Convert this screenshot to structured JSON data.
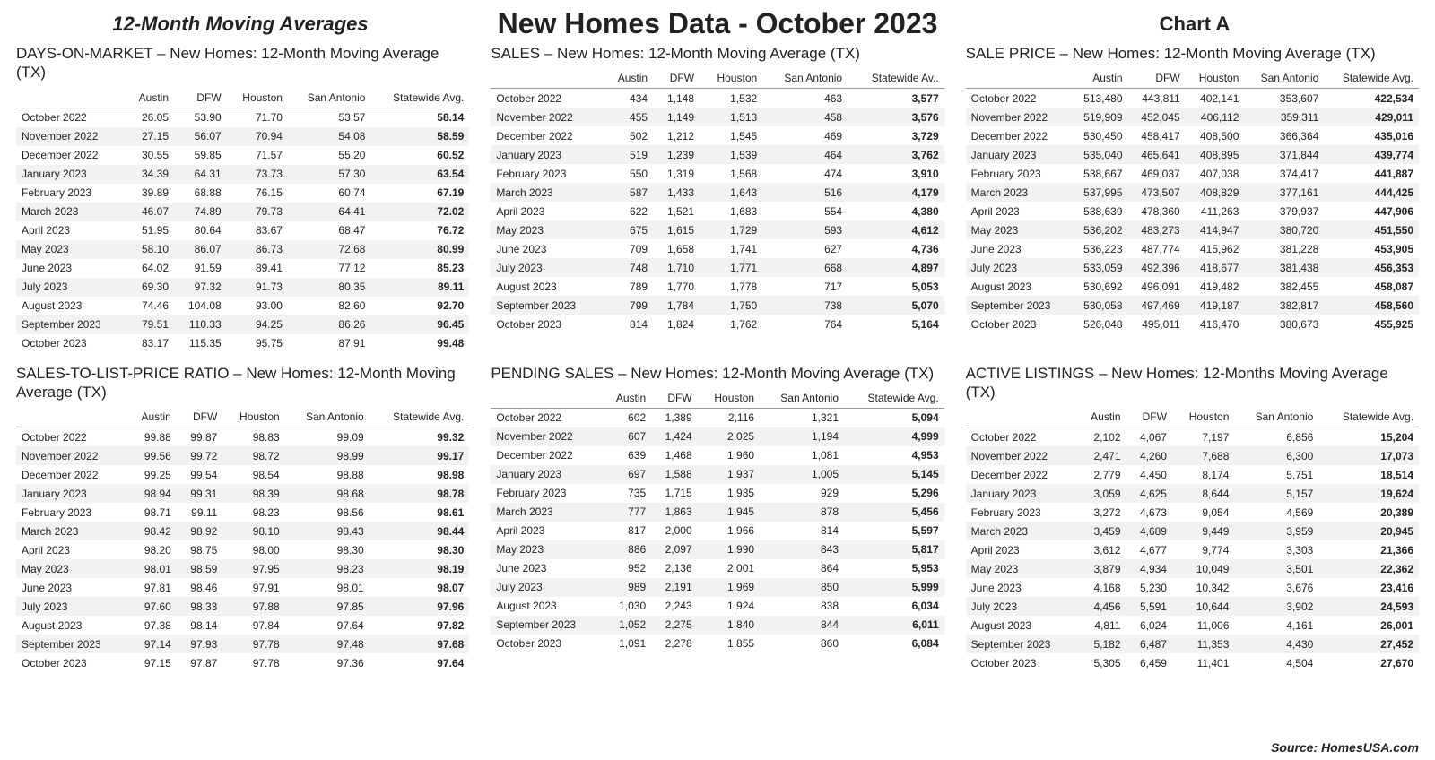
{
  "header": {
    "left": "12-Month Moving Averages",
    "center": "New Homes Data - October 2023",
    "right": "Chart A"
  },
  "colors": {
    "bg": "#ffffff",
    "text": "#222222",
    "stripe": "#f2f2f2",
    "rule": "#999999"
  },
  "typography": {
    "body_family": "Arial, Helvetica, sans-serif",
    "table_fontsize": 12,
    "panel_title_fontsize": 17,
    "header_center_fontsize": 32,
    "header_side_fontsize": 22
  },
  "months": [
    "October 2022",
    "November 2022",
    "December 2022",
    "January 2023",
    "February 2023",
    "March 2023",
    "April 2023",
    "May 2023",
    "June 2023",
    "July 2023",
    "August 2023",
    "September 2023",
    "October 2023"
  ],
  "cols_std": [
    "Austin",
    "DFW",
    "Houston",
    "San Antonio",
    "Statewide Avg."
  ],
  "cols_sales": [
    "Austin",
    "DFW",
    "Houston",
    "San Antonio",
    "Statewide Av.."
  ],
  "tables": {
    "dom": {
      "title": "DAYS-ON-MARKET – New Homes:  12-Month Moving Average (TX)",
      "rows": [
        [
          "26.05",
          "53.90",
          "71.70",
          "53.57",
          "58.14"
        ],
        [
          "27.15",
          "56.07",
          "70.94",
          "54.08",
          "58.59"
        ],
        [
          "30.55",
          "59.85",
          "71.57",
          "55.20",
          "60.52"
        ],
        [
          "34.39",
          "64.31",
          "73.73",
          "57.30",
          "63.54"
        ],
        [
          "39.89",
          "68.88",
          "76.15",
          "60.74",
          "67.19"
        ],
        [
          "46.07",
          "74.89",
          "79.73",
          "64.41",
          "72.02"
        ],
        [
          "51.95",
          "80.64",
          "83.67",
          "68.47",
          "76.72"
        ],
        [
          "58.10",
          "86.07",
          "86.73",
          "72.68",
          "80.99"
        ],
        [
          "64.02",
          "91.59",
          "89.41",
          "77.12",
          "85.23"
        ],
        [
          "69.30",
          "97.32",
          "91.73",
          "80.35",
          "89.11"
        ],
        [
          "74.46",
          "104.08",
          "93.00",
          "82.60",
          "92.70"
        ],
        [
          "79.51",
          "110.33",
          "94.25",
          "86.26",
          "96.45"
        ],
        [
          "83.17",
          "115.35",
          "95.75",
          "87.91",
          "99.48"
        ]
      ]
    },
    "sales": {
      "title": "SALES – New Homes:  12-Month Moving Average (TX)",
      "rows": [
        [
          "434",
          "1,148",
          "1,532",
          "463",
          "3,577"
        ],
        [
          "455",
          "1,149",
          "1,513",
          "458",
          "3,576"
        ],
        [
          "502",
          "1,212",
          "1,545",
          "469",
          "3,729"
        ],
        [
          "519",
          "1,239",
          "1,539",
          "464",
          "3,762"
        ],
        [
          "550",
          "1,319",
          "1,568",
          "474",
          "3,910"
        ],
        [
          "587",
          "1,433",
          "1,643",
          "516",
          "4,179"
        ],
        [
          "622",
          "1,521",
          "1,683",
          "554",
          "4,380"
        ],
        [
          "675",
          "1,615",
          "1,729",
          "593",
          "4,612"
        ],
        [
          "709",
          "1,658",
          "1,741",
          "627",
          "4,736"
        ],
        [
          "748",
          "1,710",
          "1,771",
          "668",
          "4,897"
        ],
        [
          "789",
          "1,770",
          "1,778",
          "717",
          "5,053"
        ],
        [
          "799",
          "1,784",
          "1,750",
          "738",
          "5,070"
        ],
        [
          "814",
          "1,824",
          "1,762",
          "764",
          "5,164"
        ]
      ]
    },
    "price": {
      "title": "SALE PRICE – New Homes: 12-Month Moving Average (TX)",
      "rows": [
        [
          "513,480",
          "443,811",
          "402,141",
          "353,607",
          "422,534"
        ],
        [
          "519,909",
          "452,045",
          "406,112",
          "359,311",
          "429,011"
        ],
        [
          "530,450",
          "458,417",
          "408,500",
          "366,364",
          "435,016"
        ],
        [
          "535,040",
          "465,641",
          "408,895",
          "371,844",
          "439,774"
        ],
        [
          "538,667",
          "469,037",
          "407,038",
          "374,417",
          "441,887"
        ],
        [
          "537,995",
          "473,507",
          "408,829",
          "377,161",
          "444,425"
        ],
        [
          "538,639",
          "478,360",
          "411,263",
          "379,937",
          "447,906"
        ],
        [
          "536,202",
          "483,273",
          "414,947",
          "380,720",
          "451,550"
        ],
        [
          "536,223",
          "487,774",
          "415,962",
          "381,228",
          "453,905"
        ],
        [
          "533,059",
          "492,396",
          "418,677",
          "381,438",
          "456,353"
        ],
        [
          "530,692",
          "496,091",
          "419,482",
          "382,455",
          "458,087"
        ],
        [
          "530,058",
          "497,469",
          "419,187",
          "382,817",
          "458,560"
        ],
        [
          "526,048",
          "495,011",
          "416,470",
          "380,673",
          "455,925"
        ]
      ]
    },
    "slp": {
      "title": "SALES-TO-LIST-PRICE RATIO – New Homes:  12-Month Moving Average (TX)",
      "rows": [
        [
          "99.88",
          "99.87",
          "98.83",
          "99.09",
          "99.32"
        ],
        [
          "99.56",
          "99.72",
          "98.72",
          "98.99",
          "99.17"
        ],
        [
          "99.25",
          "99.54",
          "98.54",
          "98.88",
          "98.98"
        ],
        [
          "98.94",
          "99.31",
          "98.39",
          "98.68",
          "98.78"
        ],
        [
          "98.71",
          "99.11",
          "98.23",
          "98.56",
          "98.61"
        ],
        [
          "98.42",
          "98.92",
          "98.10",
          "98.43",
          "98.44"
        ],
        [
          "98.20",
          "98.75",
          "98.00",
          "98.30",
          "98.30"
        ],
        [
          "98.01",
          "98.59",
          "97.95",
          "98.23",
          "98.19"
        ],
        [
          "97.81",
          "98.46",
          "97.91",
          "98.01",
          "98.07"
        ],
        [
          "97.60",
          "98.33",
          "97.88",
          "97.85",
          "97.96"
        ],
        [
          "97.38",
          "98.14",
          "97.84",
          "97.64",
          "97.82"
        ],
        [
          "97.14",
          "97.93",
          "97.78",
          "97.48",
          "97.68"
        ],
        [
          "97.15",
          "97.87",
          "97.78",
          "97.36",
          "97.64"
        ]
      ]
    },
    "pending": {
      "title": "PENDING SALES – New Homes:  12-Month Moving Average (TX)",
      "rows": [
        [
          "602",
          "1,389",
          "2,116",
          "1,321",
          "5,094"
        ],
        [
          "607",
          "1,424",
          "2,025",
          "1,194",
          "4,999"
        ],
        [
          "639",
          "1,468",
          "1,960",
          "1,081",
          "4,953"
        ],
        [
          "697",
          "1,588",
          "1,937",
          "1,005",
          "5,145"
        ],
        [
          "735",
          "1,715",
          "1,935",
          "929",
          "5,296"
        ],
        [
          "777",
          "1,863",
          "1,945",
          "878",
          "5,456"
        ],
        [
          "817",
          "2,000",
          "1,966",
          "814",
          "5,597"
        ],
        [
          "886",
          "2,097",
          "1,990",
          "843",
          "5,817"
        ],
        [
          "952",
          "2,136",
          "2,001",
          "864",
          "5,953"
        ],
        [
          "989",
          "2,191",
          "1,969",
          "850",
          "5,999"
        ],
        [
          "1,030",
          "2,243",
          "1,924",
          "838",
          "6,034"
        ],
        [
          "1,052",
          "2,275",
          "1,840",
          "844",
          "6,011"
        ],
        [
          "1,091",
          "2,278",
          "1,855",
          "860",
          "6,084"
        ]
      ]
    },
    "active": {
      "title": "ACTIVE LISTINGS – New Homes: 12-Months  Moving Average (TX)",
      "rows": [
        [
          "2,102",
          "4,067",
          "7,197",
          "6,856",
          "15,204"
        ],
        [
          "2,471",
          "4,260",
          "7,688",
          "6,300",
          "17,073"
        ],
        [
          "2,779",
          "4,450",
          "8,174",
          "5,751",
          "18,514"
        ],
        [
          "3,059",
          "4,625",
          "8,644",
          "5,157",
          "19,624"
        ],
        [
          "3,272",
          "4,673",
          "9,054",
          "4,569",
          "20,389"
        ],
        [
          "3,459",
          "4,689",
          "9,449",
          "3,959",
          "20,945"
        ],
        [
          "3,612",
          "4,677",
          "9,774",
          "3,303",
          "21,366"
        ],
        [
          "3,879",
          "4,934",
          "10,049",
          "3,501",
          "22,362"
        ],
        [
          "4,168",
          "5,230",
          "10,342",
          "3,676",
          "23,416"
        ],
        [
          "4,456",
          "5,591",
          "10,644",
          "3,902",
          "24,593"
        ],
        [
          "4,811",
          "6,024",
          "11,006",
          "4,161",
          "26,001"
        ],
        [
          "5,182",
          "6,487",
          "11,353",
          "4,430",
          "27,452"
        ],
        [
          "5,305",
          "6,459",
          "11,401",
          "4,504",
          "27,670"
        ]
      ]
    }
  },
  "source": "Source: HomesUSA.com"
}
